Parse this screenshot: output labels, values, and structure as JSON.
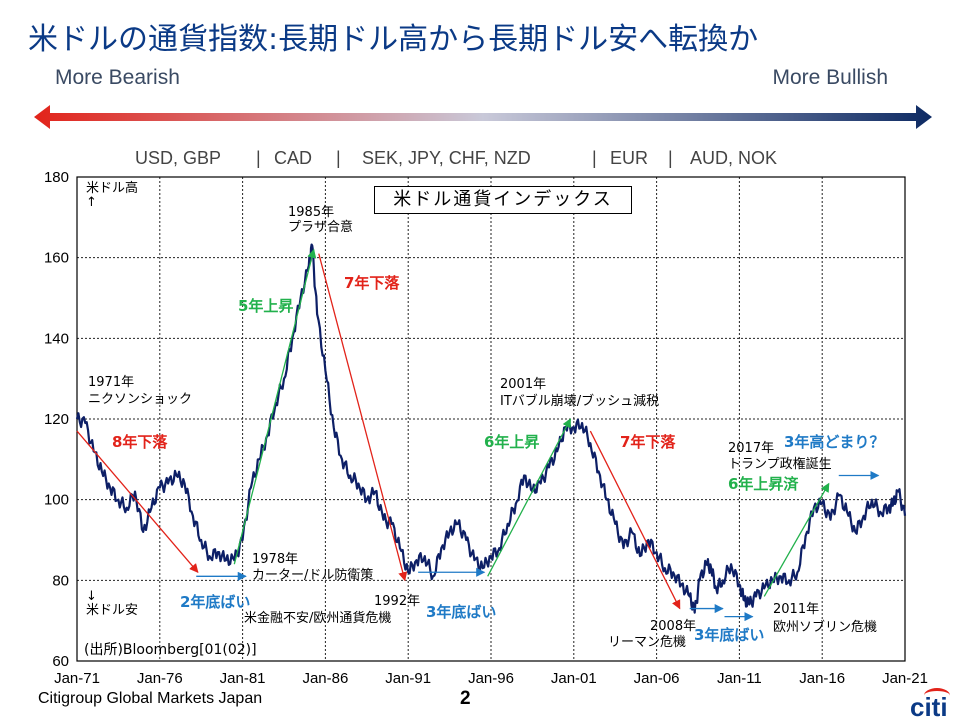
{
  "header": {
    "title": "米ドルの通貨指数:長期ドル高から長期ドル安へ転換か",
    "more_bearish": "More Bearish",
    "more_bullish": "More Bullish"
  },
  "currency_groups": [
    "USD, GBP",
    "|",
    "CAD",
    "|",
    "SEK, JPY, CHF, NZD",
    "|",
    "EUR",
    "|",
    "AUD, NOK"
  ],
  "colors": {
    "title": "#0b3a86",
    "line": "#0d1f66",
    "red": "#e2231a",
    "green": "#22b14c",
    "blue": "#1f7ac6",
    "arrow_left": "#e2231a",
    "arrow_right": "#0d2a63"
  },
  "chart_data": {
    "type": "line",
    "title": "米ドル通貨インデックス",
    "xlabel": "",
    "ylabel": "",
    "ylim": [
      60,
      180
    ],
    "yticks": [
      60,
      80,
      100,
      120,
      140,
      160,
      180
    ],
    "xlim": [
      1971.0,
      2021.0
    ],
    "xticks": [
      1971,
      1976,
      1981,
      1986,
      1991,
      1996,
      2001,
      2006,
      2011,
      2016,
      2021
    ],
    "xtick_labels": [
      "Jan-71",
      "Jan-76",
      "Jan-81",
      "Jan-86",
      "Jan-91",
      "Jan-96",
      "Jan-01",
      "Jan-06",
      "Jan-11",
      "Jan-16",
      "Jan-21"
    ],
    "grid": true,
    "series": [
      {
        "name": "米ドル通貨インデックス",
        "x": [
          1971.0,
          1971.5,
          1972.0,
          1972.5,
          1973.0,
          1973.5,
          1974.0,
          1974.5,
          1975.0,
          1975.5,
          1976.0,
          1976.5,
          1977.0,
          1977.5,
          1978.0,
          1978.5,
          1979.0,
          1979.5,
          1980.0,
          1980.5,
          1981.0,
          1981.5,
          1982.0,
          1982.5,
          1983.0,
          1983.5,
          1984.0,
          1984.5,
          1985.0,
          1985.2,
          1985.5,
          1986.0,
          1986.5,
          1987.0,
          1987.5,
          1988.0,
          1988.5,
          1989.0,
          1989.5,
          1990.0,
          1990.5,
          1991.0,
          1991.5,
          1992.0,
          1992.5,
          1993.0,
          1993.5,
          1994.0,
          1994.5,
          1995.0,
          1995.5,
          1996.0,
          1996.5,
          1997.0,
          1997.5,
          1998.0,
          1998.5,
          1999.0,
          1999.5,
          2000.0,
          2000.5,
          2001.0,
          2001.5,
          2002.0,
          2002.5,
          2003.0,
          2003.5,
          2004.0,
          2004.5,
          2005.0,
          2005.5,
          2006.0,
          2006.5,
          2007.0,
          2007.5,
          2008.0,
          2008.3,
          2008.6,
          2009.0,
          2009.3,
          2009.6,
          2010.0,
          2010.5,
          2011.0,
          2011.3,
          2011.6,
          2012.0,
          2012.5,
          2013.0,
          2013.5,
          2014.0,
          2014.5,
          2015.0,
          2015.5,
          2016.0,
          2016.5,
          2017.0,
          2017.5,
          2018.0,
          2018.5,
          2019.0,
          2019.5,
          2020.0,
          2020.3,
          2020.6,
          2021.0
        ],
        "values": [
          120,
          119,
          112,
          107,
          103,
          100,
          98,
          102,
          92,
          98,
          103,
          104,
          106,
          104,
          96,
          90,
          86,
          87,
          85,
          85,
          90,
          103,
          110,
          116,
          124,
          130,
          140,
          150,
          158,
          163,
          146,
          132,
          118,
          110,
          106,
          104,
          100,
          102,
          95,
          94,
          88,
          82,
          85,
          86,
          81,
          88,
          92,
          94,
          90,
          85,
          83,
          86,
          88,
          94,
          99,
          106,
          102,
          104,
          108,
          112,
          118,
          118,
          119,
          114,
          107,
          100,
          94,
          88,
          92,
          86,
          90,
          87,
          83,
          82,
          79,
          76,
          72,
          80,
          84,
          83,
          78,
          80,
          84,
          79,
          75,
          74,
          76,
          78,
          80,
          81,
          80,
          82,
          91,
          98,
          99,
          95,
          101,
          97,
          92,
          96,
          100,
          97,
          98,
          99,
          102,
          96
        ]
      }
    ],
    "annotations": [
      {
        "text": "米ドル高",
        "color": "black"
      },
      {
        "text": "↑",
        "color": "black"
      },
      {
        "text": "↓",
        "color": "black"
      },
      {
        "text": "米ドル安",
        "color": "black"
      },
      {
        "text": "1971年",
        "color": "black"
      },
      {
        "text": "ニクソンショック",
        "color": "black"
      },
      {
        "text": "8年下落",
        "color": "red"
      },
      {
        "text": "1985年",
        "color": "black"
      },
      {
        "text": "プラザ合意",
        "color": "black"
      },
      {
        "text": "5年上昇",
        "color": "green"
      },
      {
        "text": "7年下落",
        "color": "red"
      },
      {
        "text": "1978年",
        "color": "black"
      },
      {
        "text": "カーター/ドル防衛策",
        "color": "black"
      },
      {
        "text": "2年底ばい",
        "color": "blue"
      },
      {
        "text": "米金融不安/欧州通貨危機",
        "color": "black"
      },
      {
        "text": "1992年",
        "color": "black"
      },
      {
        "text": "3年底ばい",
        "color": "blue"
      },
      {
        "text": "2001年",
        "color": "black"
      },
      {
        "text": "ITバブル崩壊/ブッシュ減税",
        "color": "black"
      },
      {
        "text": "6年上昇",
        "color": "green"
      },
      {
        "text": "7年下落",
        "color": "red"
      },
      {
        "text": "2008年",
        "color": "black"
      },
      {
        "text": "リーマン危機",
        "color": "black"
      },
      {
        "text": "3年底ばい",
        "color": "blue"
      },
      {
        "text": "2011年",
        "color": "black"
      },
      {
        "text": "欧州ソブリン危機",
        "color": "black"
      },
      {
        "text": "2017年",
        "color": "black"
      },
      {
        "text": "トランプ政権誕生",
        "color": "black"
      },
      {
        "text": "3年高どまり？",
        "color": "blue"
      },
      {
        "text": "6年上昇済",
        "color": "green"
      },
      {
        "text": "(出所)Bloomberg[01(02)]",
        "color": "black"
      }
    ]
  },
  "footer": {
    "company": "Citigroup Global Markets Japan",
    "page": "2",
    "logo": "citi"
  }
}
